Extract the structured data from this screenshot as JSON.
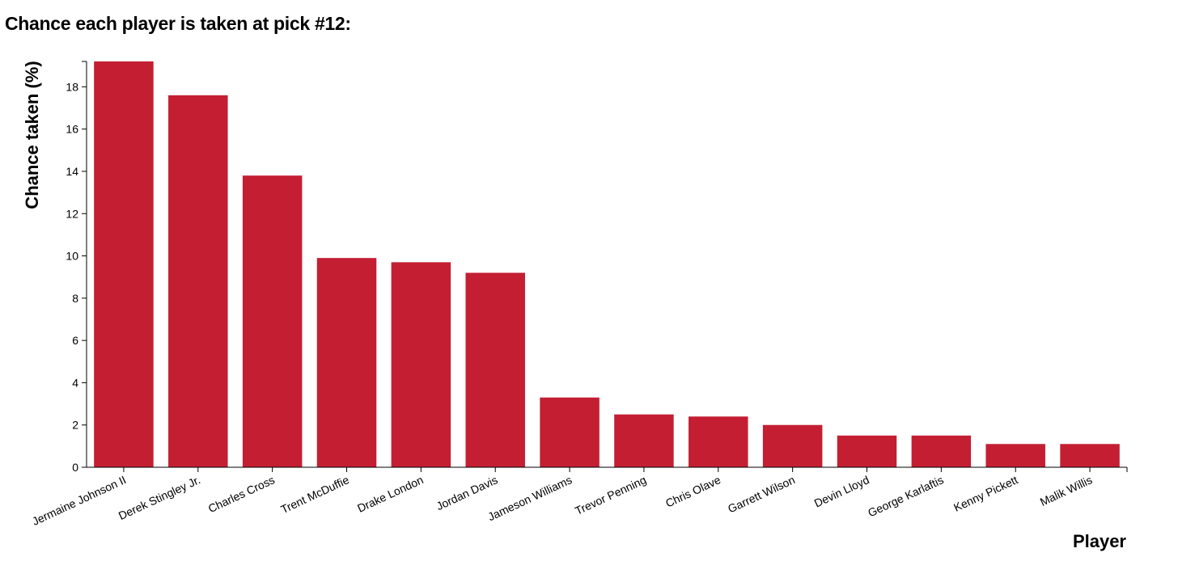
{
  "header": {
    "title": "Chance each player is taken at pick #12:"
  },
  "colors": {
    "bar": "#c41e33",
    "axis": "#000000"
  },
  "chart_data": {
    "type": "bar",
    "title": "Chance each player is taken at pick #12:",
    "xlabel": "Player",
    "ylabel": "Chance taken (%)",
    "ylim": [
      0,
      19.2
    ],
    "yticks": [
      0,
      2,
      4,
      6,
      8,
      10,
      12,
      14,
      16,
      18
    ],
    "grid": false,
    "categories": [
      "Jermaine Johnson II",
      "Derek Stingley Jr.",
      "Charles Cross",
      "Trent McDuffie",
      "Drake London",
      "Jordan Davis",
      "Jameson Williams",
      "Trevor Penning",
      "Chris Olave",
      "Garrett Wilson",
      "Devin Lloyd",
      "George Karlaftis",
      "Kenny Pickett",
      "Malik Willis"
    ],
    "values": [
      19.2,
      17.6,
      13.8,
      9.9,
      9.7,
      9.2,
      3.3,
      2.5,
      2.4,
      2.0,
      1.5,
      1.5,
      1.1,
      1.1
    ]
  }
}
